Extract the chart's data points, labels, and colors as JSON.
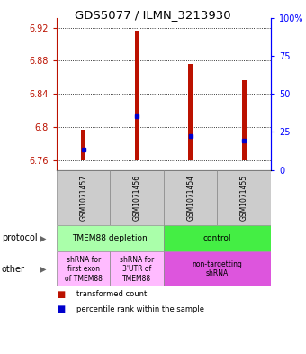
{
  "title": "GDS5077 / ILMN_3213930",
  "samples": [
    "GSM1071457",
    "GSM1071456",
    "GSM1071454",
    "GSM1071455"
  ],
  "bar_bottoms": [
    6.76,
    6.76,
    6.76,
    6.76
  ],
  "bar_tops": [
    6.797,
    6.916,
    6.876,
    6.856
  ],
  "blue_dots": [
    6.773,
    6.813,
    6.789,
    6.784
  ],
  "ylim_left": [
    6.748,
    6.932
  ],
  "yticks_left": [
    6.76,
    6.8,
    6.84,
    6.88,
    6.92
  ],
  "ytick_labels_left": [
    "6.76",
    "6.8",
    "6.84",
    "6.88",
    "6.92"
  ],
  "yticks_right": [
    0,
    25,
    50,
    75,
    100
  ],
  "ytick_labels_right": [
    "0",
    "25",
    "50",
    "75",
    "100%"
  ],
  "bar_color": "#bb1100",
  "dot_color": "#0000cc",
  "protocol_groups": [
    {
      "label": "TMEM88 depletion",
      "cols": [
        0,
        1
      ],
      "color": "#aaffaa"
    },
    {
      "label": "control",
      "cols": [
        2,
        3
      ],
      "color": "#44ee44"
    }
  ],
  "other_groups": [
    {
      "label": "shRNA for\nfirst exon\nof TMEM88",
      "cols": [
        0
      ],
      "color": "#ffbbff"
    },
    {
      "label": "shRNA for\n3'UTR of\nTMEM88",
      "cols": [
        1
      ],
      "color": "#ffbbff"
    },
    {
      "label": "non-targetting\nshRNA",
      "cols": [
        2,
        3
      ],
      "color": "#dd55dd"
    }
  ],
  "legend_items": [
    {
      "color": "#bb1100",
      "label": "transformed count"
    },
    {
      "color": "#0000cc",
      "label": "percentile rank within the sample"
    }
  ],
  "fig_width": 3.4,
  "fig_height": 3.93,
  "dpi": 100
}
